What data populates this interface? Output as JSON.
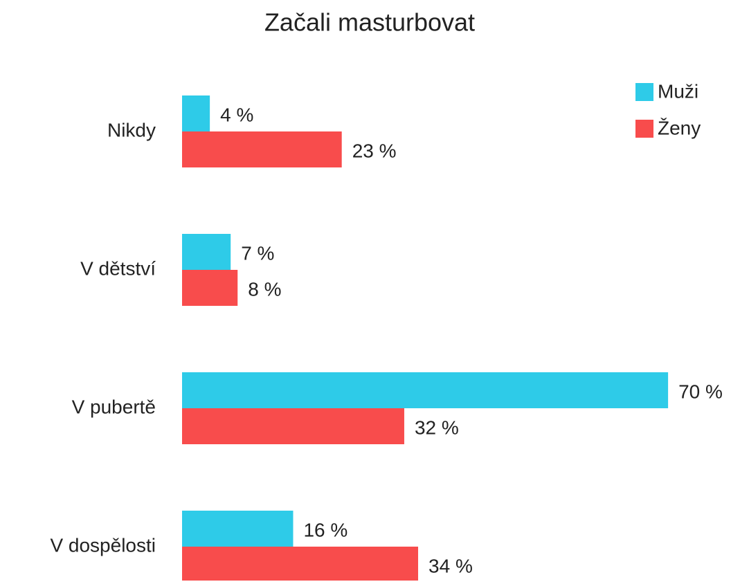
{
  "chart_data": {
    "type": "bar",
    "orientation": "horizontal",
    "title": "Začali masturbovat",
    "categories": [
      "Nikdy",
      "V dětství",
      "V pubertě",
      "V dospělosti"
    ],
    "series": [
      {
        "name": "Muži",
        "color": "#2ecbe8",
        "values": [
          4,
          7,
          70,
          16
        ],
        "value_labels": [
          "4 %",
          "7 %",
          "70 %",
          "16 %"
        ]
      },
      {
        "name": "Ženy",
        "color": "#f84c4c",
        "values": [
          23,
          8,
          32,
          34
        ],
        "value_labels": [
          "23 %",
          "8 %",
          "32 %",
          "34 %"
        ]
      }
    ],
    "legend": "top-right"
  }
}
